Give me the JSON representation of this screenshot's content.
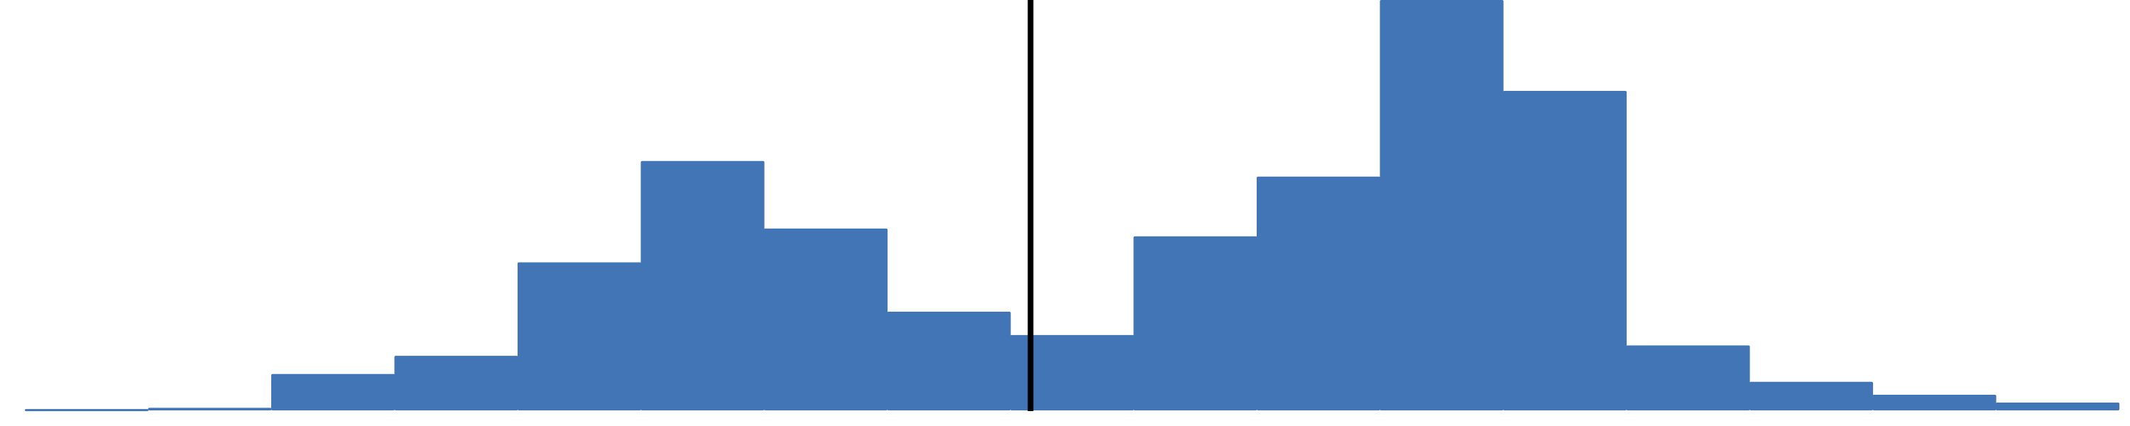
{
  "chart_data": {
    "type": "bar",
    "values": [
      0.5,
      1,
      14,
      21,
      57,
      96,
      70,
      38,
      29,
      67,
      90,
      158,
      123,
      25,
      11,
      6,
      3
    ],
    "ylim": [
      0,
      158
    ],
    "reference_line_after_bar": 9,
    "grid": false,
    "legend": "none"
  },
  "colors": {
    "bars": "#4275B6",
    "reference_line": "#000000",
    "background": "#FFFFFF"
  }
}
